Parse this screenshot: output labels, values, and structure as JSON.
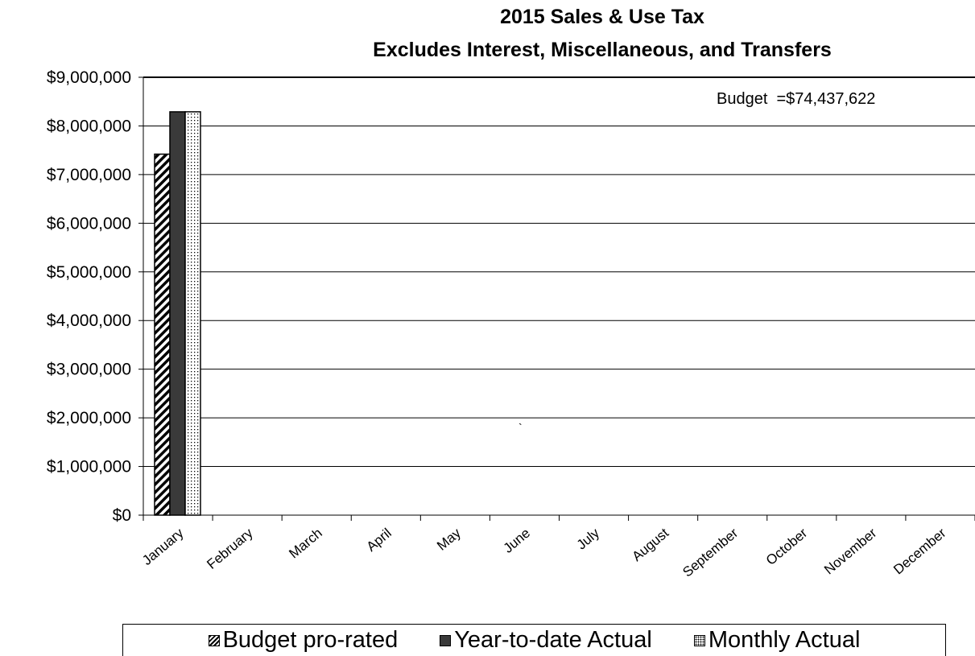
{
  "chart_data": {
    "type": "bar",
    "title": [
      "2015 Sales & Use Tax",
      "Excludes Interest, Miscellaneous, and Transfers"
    ],
    "annotation": "Budget  =$74,437,622",
    "categories": [
      "January",
      "February",
      "March",
      "April",
      "May",
      "June",
      "July",
      "August",
      "September",
      "October",
      "November",
      "December"
    ],
    "ylim": [
      0,
      9000000
    ],
    "yticks": [
      "$0",
      "$1,000,000",
      "$2,000,000",
      "$3,000,000",
      "$4,000,000",
      "$5,000,000",
      "$6,000,000",
      "$7,000,000",
      "$8,000,000",
      "$9,000,000"
    ],
    "grid": true,
    "legend_position": "bottom",
    "series": [
      {
        "name": "Budget pro-rated",
        "pattern": "diagonal-hatch",
        "color": "#000000",
        "values": [
          7420000,
          null,
          null,
          null,
          null,
          null,
          null,
          null,
          null,
          null,
          null,
          null
        ]
      },
      {
        "name": "Year-to-date Actual",
        "pattern": "solid",
        "color": "#3a3a3a",
        "values": [
          8290000,
          null,
          null,
          null,
          null,
          null,
          null,
          null,
          null,
          null,
          null,
          null
        ]
      },
      {
        "name": "Monthly Actual",
        "pattern": "dotted",
        "color": "#ffffff",
        "values": [
          8290000,
          null,
          null,
          null,
          null,
          null,
          null,
          null,
          null,
          null,
          null,
          null
        ]
      }
    ]
  }
}
